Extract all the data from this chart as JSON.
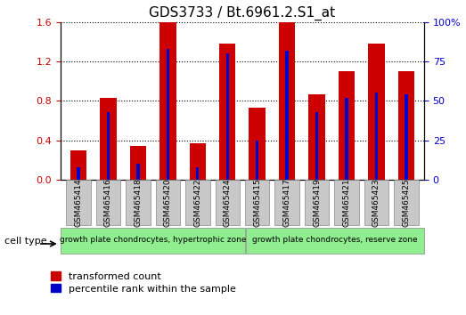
{
  "title": "GDS3733 / Bt.6961.2.S1_at",
  "samples": [
    "GSM465414",
    "GSM465416",
    "GSM465418",
    "GSM465420",
    "GSM465422",
    "GSM465424",
    "GSM465415",
    "GSM465417",
    "GSM465419",
    "GSM465421",
    "GSM465423",
    "GSM465425"
  ],
  "transformed_count": [
    0.3,
    0.83,
    0.34,
    1.6,
    0.37,
    1.38,
    0.73,
    1.6,
    0.87,
    1.1,
    1.38,
    1.1
  ],
  "percentile_rank_pct": [
    8,
    43,
    10,
    83,
    8,
    80,
    25,
    82,
    43,
    52,
    55,
    54
  ],
  "bar_width": 0.55,
  "blue_bar_width": 0.1,
  "red_color": "#CC0000",
  "blue_color": "#0000CC",
  "ylim_left": [
    0,
    1.6
  ],
  "ylim_right": [
    0,
    100
  ],
  "yticks_left": [
    0,
    0.4,
    0.8,
    1.2,
    1.6
  ],
  "yticks_right": [
    0,
    25,
    50,
    75,
    100
  ],
  "group1_label": "growth plate chondrocytes, hypertrophic zone",
  "group2_label": "growth plate chondrocytes, reserve zone",
  "group1_count": 6,
  "group2_count": 6,
  "cell_type_label": "cell type",
  "legend1": "transformed count",
  "legend2": "percentile rank within the sample",
  "group_bg_color": "#90EE90",
  "tick_label_color_left": "#CC0000",
  "tick_label_color_right": "#0000CC",
  "xticklabel_bg": "#C8C8C8",
  "fig_width": 5.23,
  "fig_height": 3.54,
  "dpi": 100
}
